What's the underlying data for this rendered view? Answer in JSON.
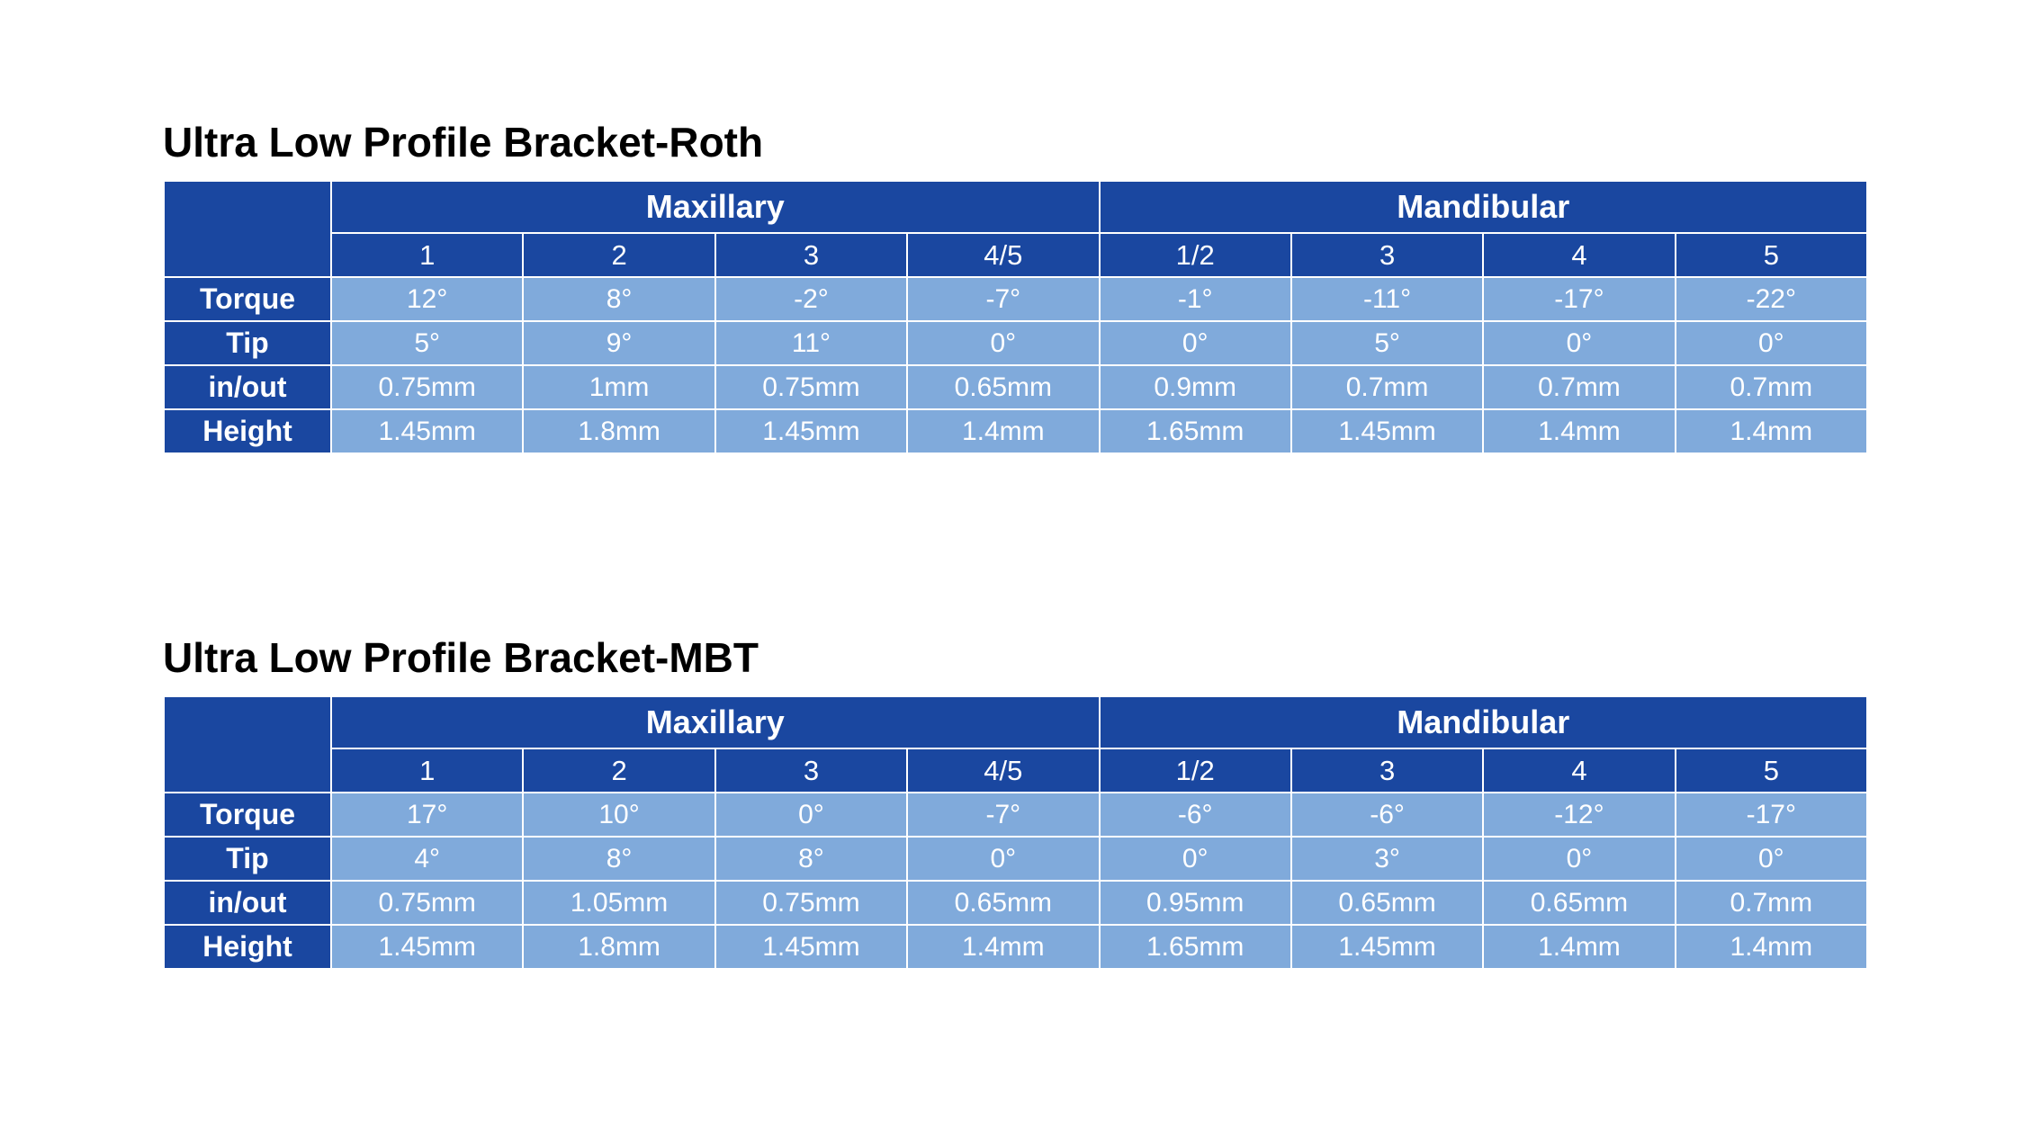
{
  "tables": [
    {
      "title": "Ultra Low Profile Bracket-Roth",
      "groups": [
        "Maxillary",
        "Mandibular"
      ],
      "columns": [
        "1",
        "2",
        "3",
        "4/5",
        "1/2",
        "3",
        "4",
        "5"
      ],
      "rows": [
        {
          "label": "Torque",
          "cells": [
            "12°",
            "8°",
            "-2°",
            "-7°",
            "-1°",
            "-11°",
            "-17°",
            "-22°"
          ]
        },
        {
          "label": "Tip",
          "cells": [
            "5°",
            "9°",
            "11°",
            "0°",
            "0°",
            "5°",
            "0°",
            "0°"
          ]
        },
        {
          "label": "in/out",
          "cells": [
            "0.75mm",
            "1mm",
            "0.75mm",
            "0.65mm",
            "0.9mm",
            "0.7mm",
            "0.7mm",
            "0.7mm"
          ]
        },
        {
          "label": "Height",
          "cells": [
            "1.45mm",
            "1.8mm",
            "1.45mm",
            "1.4mm",
            "1.65mm",
            "1.45mm",
            "1.4mm",
            "1.4mm"
          ]
        }
      ]
    },
    {
      "title": "Ultra Low Profile Bracket-MBT",
      "groups": [
        "Maxillary",
        "Mandibular"
      ],
      "columns": [
        "1",
        "2",
        "3",
        "4/5",
        "1/2",
        "3",
        "4",
        "5"
      ],
      "rows": [
        {
          "label": "Torque",
          "cells": [
            "17°",
            "10°",
            "0°",
            "-7°",
            "-6°",
            "-6°",
            "-12°",
            "-17°"
          ]
        },
        {
          "label": "Tip",
          "cells": [
            "4°",
            "8°",
            "8°",
            "0°",
            "0°",
            "3°",
            "0°",
            "0°"
          ]
        },
        {
          "label": "in/out",
          "cells": [
            "0.75mm",
            "1.05mm",
            "0.75mm",
            "0.65mm",
            "0.95mm",
            "0.65mm",
            "0.65mm",
            "0.7mm"
          ]
        },
        {
          "label": "Height",
          "cells": [
            "1.45mm",
            "1.8mm",
            "1.45mm",
            "1.4mm",
            "1.65mm",
            "1.45mm",
            "1.4mm",
            "1.4mm"
          ]
        }
      ]
    }
  ]
}
